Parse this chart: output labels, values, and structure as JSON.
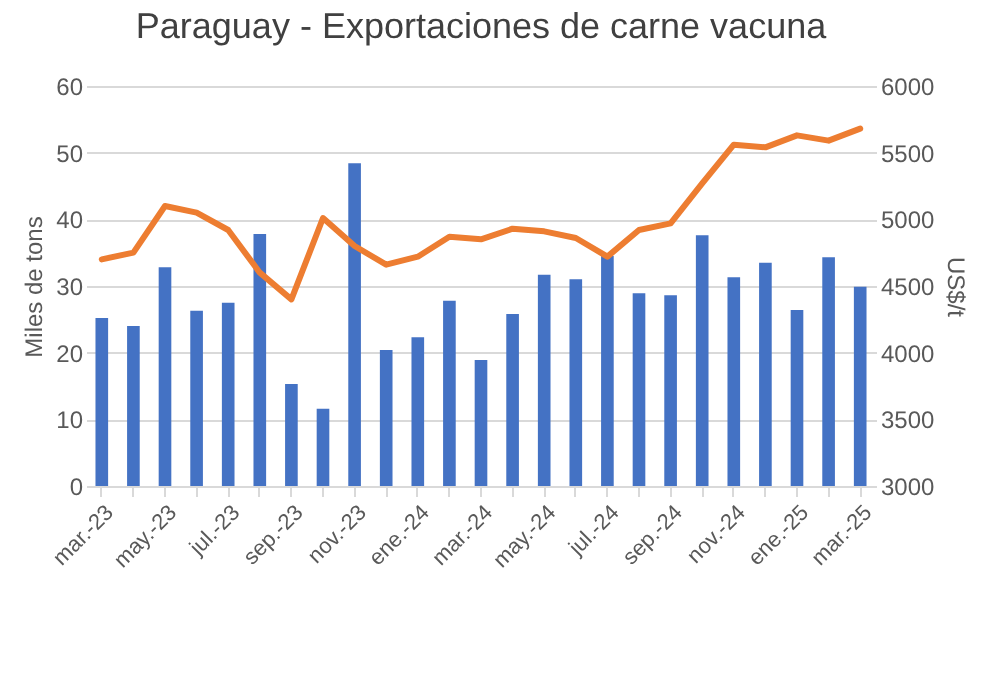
{
  "chart_data": {
    "type": "bar",
    "title": "Paraguay - Exportaciones de carne vacuna",
    "ylabel": "Miles de tons",
    "y2label": "US$/t",
    "categories": [
      "mar.-23",
      null,
      "may.-23",
      null,
      "jul.-23",
      null,
      "sep.-23",
      null,
      "nov.-23",
      null,
      "ene.-24",
      null,
      "mar.-24",
      null,
      "may.-24",
      null,
      "jul.-24",
      null,
      "sep.-24",
      null,
      "nov.-24",
      null,
      "ene.-25",
      null,
      "mar.-25"
    ],
    "series": [
      {
        "color": "#4472c4",
        "values": [
          25.2,
          24,
          32.8,
          26.3,
          27.5,
          37.8,
          15.3,
          11.6,
          48.4,
          20.4,
          22.3,
          27.8,
          18.9,
          25.8,
          31.7,
          31,
          34.5,
          28.9,
          28.6,
          37.6,
          31.3,
          33.5,
          26.4,
          34.3,
          29.9
        ]
      },
      {
        "type": "line",
        "axis": "y2",
        "color": "#ed7d31",
        "values": [
          4700,
          4750,
          5100,
          5050,
          4920,
          4600,
          4400,
          5010,
          4800,
          4660,
          4720,
          4870,
          4850,
          4930,
          4910,
          4860,
          4720,
          4920,
          4970,
          5270,
          5560,
          5540,
          5630,
          5590,
          5680
        ]
      }
    ],
    "ylim": [
      0,
      60
    ],
    "yticks": [
      0,
      10,
      20,
      30,
      40,
      50,
      60
    ],
    "y2lim": [
      3000,
      6000
    ],
    "y2ticks": [
      3000,
      3500,
      4000,
      4500,
      5000,
      5500,
      6000
    ],
    "grid": "y"
  }
}
